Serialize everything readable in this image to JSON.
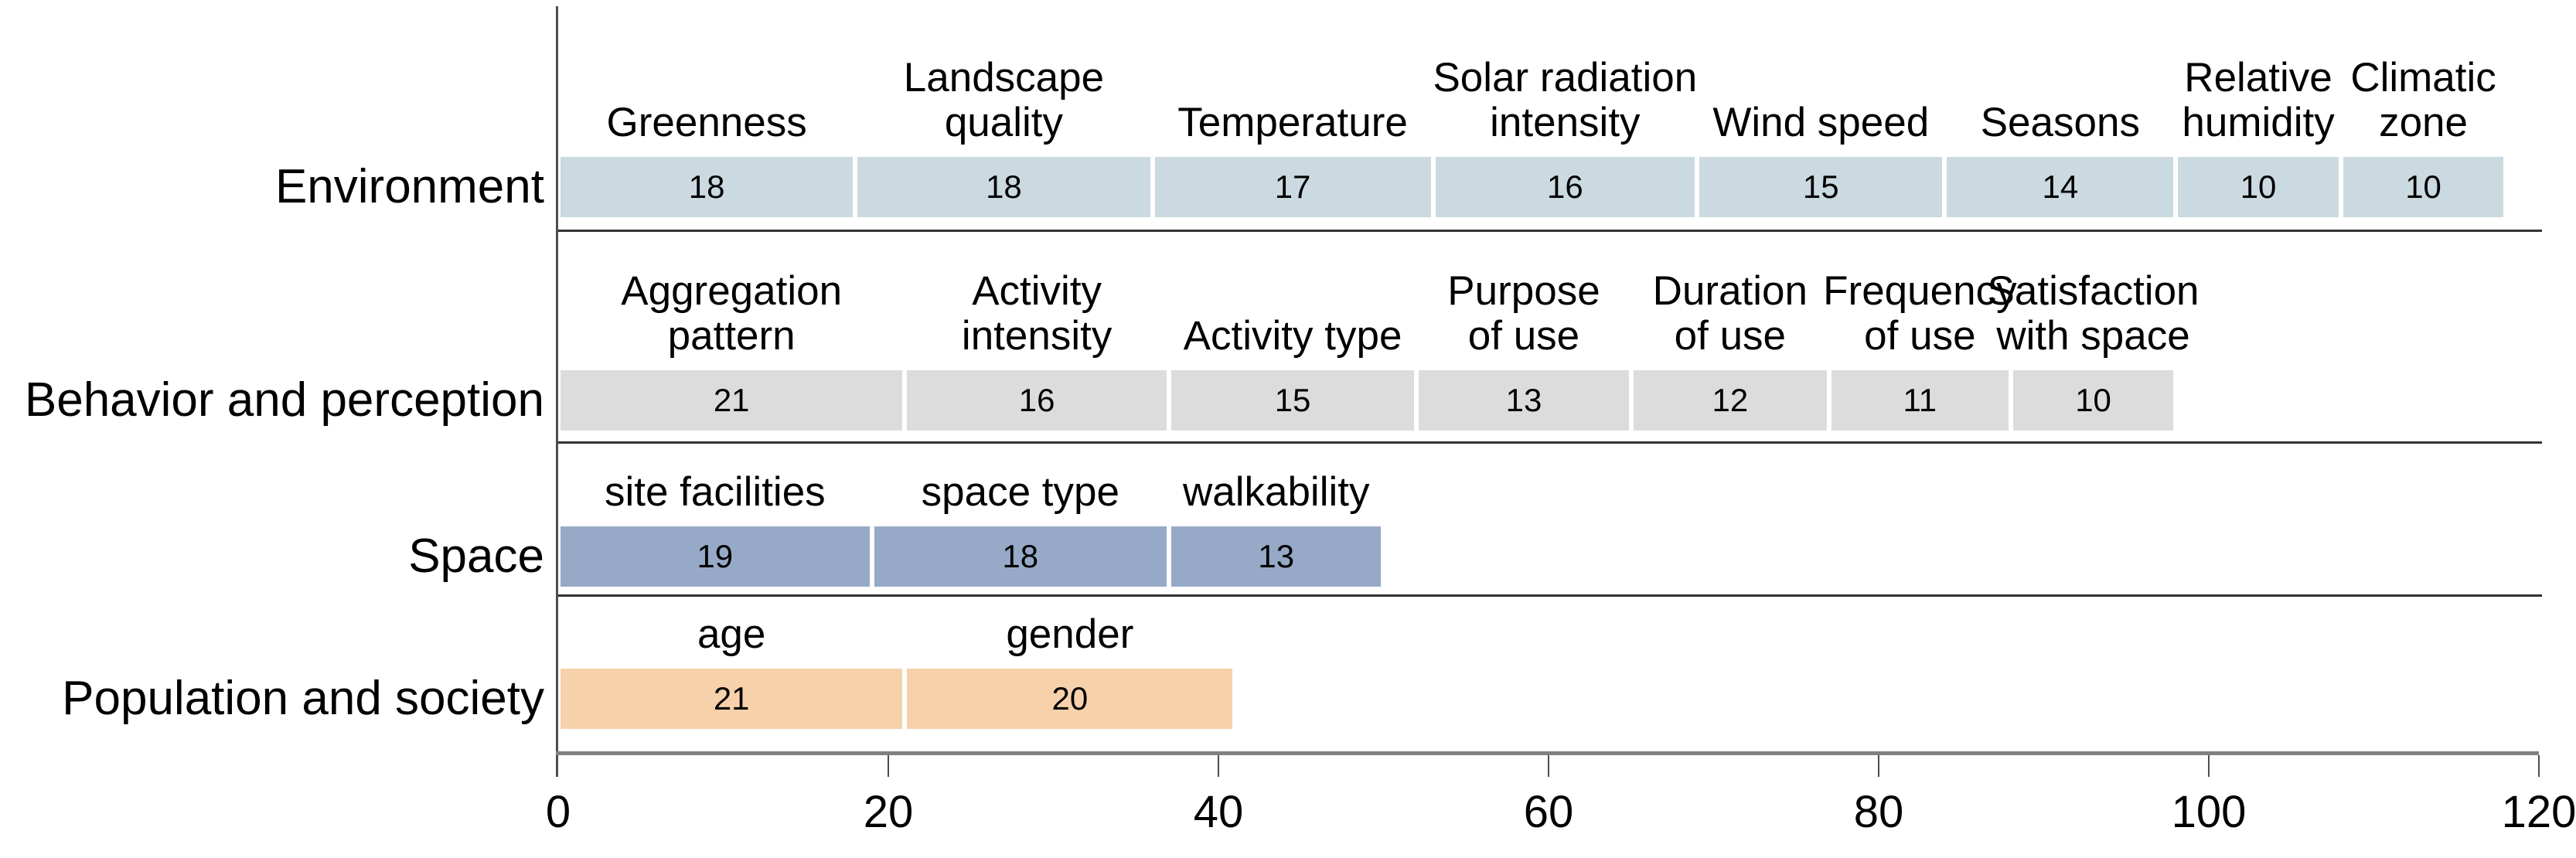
{
  "chart_data": {
    "type": "bar",
    "orientation": "horizontal",
    "stacked": true,
    "title": "",
    "xlabel": "",
    "ylabel": "",
    "x_axis": {
      "min": 0,
      "max": 120,
      "tick_values": [
        0,
        20,
        40,
        60,
        80,
        100,
        120
      ],
      "tick_labels": [
        "0",
        "20",
        "40",
        "60",
        "80",
        "100",
        "120"
      ]
    },
    "legend": "none",
    "grid": false,
    "rows": [
      {
        "category": "Environment",
        "color": "#cbd9e0",
        "segments": [
          {
            "label": "Greenness",
            "lines": [
              "Greenness"
            ],
            "value": 18
          },
          {
            "label": "Landscape quality",
            "lines": [
              "Landscape",
              "quality"
            ],
            "value": 18
          },
          {
            "label": "Temperature",
            "lines": [
              "Temperature"
            ],
            "value": 17
          },
          {
            "label": "Solar radiation intensity",
            "lines": [
              "Solar radiation",
              "intensity"
            ],
            "value": 16
          },
          {
            "label": "Wind speed",
            "lines": [
              "Wind speed"
            ],
            "value": 15
          },
          {
            "label": "Seasons",
            "lines": [
              "Seasons"
            ],
            "value": 14
          },
          {
            "label": "Relative humidity",
            "lines": [
              "Relative",
              "humidity"
            ],
            "value": 10
          },
          {
            "label": "Climatic zone",
            "lines": [
              "Climatic",
              "zone"
            ],
            "value": 10
          }
        ]
      },
      {
        "category": "Behavior and perception",
        "color": "#dcdcdc",
        "segments": [
          {
            "label": "Aggregation pattern",
            "lines": [
              "Aggregation",
              "pattern"
            ],
            "value": 21
          },
          {
            "label": "Activity intensity",
            "lines": [
              "Activity",
              "intensity"
            ],
            "value": 16
          },
          {
            "label": "Activity type",
            "lines": [
              "Activity type"
            ],
            "value": 15
          },
          {
            "label": "Purpose of use",
            "lines": [
              "Purpose",
              "of use"
            ],
            "value": 13
          },
          {
            "label": "Duration of use",
            "lines": [
              "Duration",
              "of use"
            ],
            "value": 12
          },
          {
            "label": "Frequency of use",
            "lines": [
              "Frequency",
              "of use"
            ],
            "value": 11
          },
          {
            "label": "Satisfaction with space",
            "lines": [
              "Satisfaction",
              "with space"
            ],
            "value": 10
          }
        ]
      },
      {
        "category": "Space",
        "color": "#96a9c7",
        "segments": [
          {
            "label": "site facilities",
            "lines": [
              "site facilities"
            ],
            "value": 19
          },
          {
            "label": "space type",
            "lines": [
              "space type"
            ],
            "value": 18
          },
          {
            "label": "walkability",
            "lines": [
              "walkability"
            ],
            "value": 13
          }
        ]
      },
      {
        "category": "Population and society",
        "color": "#f6d1aa",
        "segments": [
          {
            "label": "age",
            "lines": [
              "age"
            ],
            "value": 21
          },
          {
            "label": "gender",
            "lines": [
              "gender"
            ],
            "value": 20
          }
        ]
      }
    ],
    "colors": {
      "axis_line": "#808080",
      "tick_mark": "#4d4d4d",
      "divider_line": "#333333",
      "text": "#000000",
      "segment_border": "#ffffff"
    }
  }
}
